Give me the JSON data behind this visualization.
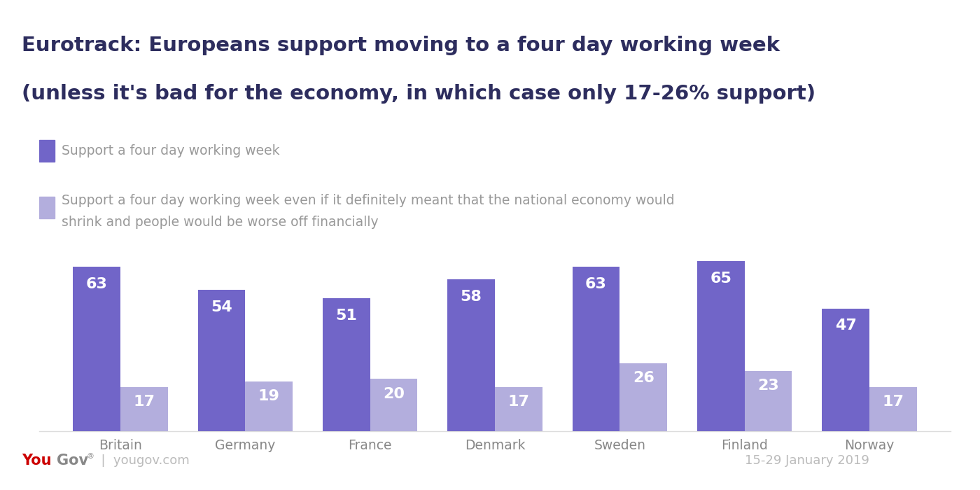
{
  "title_line1": "Eurotrack: Europeans support moving to a four day working week",
  "title_line2": "(unless it's bad for the economy, in which case only 17-26% support)",
  "countries": [
    "Britain",
    "Germany",
    "France",
    "Denmark",
    "Sweden",
    "Finland",
    "Norway"
  ],
  "support_main": [
    63,
    54,
    51,
    58,
    63,
    65,
    47
  ],
  "support_economy": [
    17,
    19,
    20,
    17,
    26,
    23,
    17
  ],
  "color_main": "#7165c8",
  "color_light": "#b3aedd",
  "title_bg": "#eae8f2",
  "legend_label_main": "Support a four day working week",
  "legend_label_economy_1": "Support a four day working week even if it definitely meant that the national economy would",
  "legend_label_economy_2": "shrink and people would be worse off financially",
  "bar_width": 0.38,
  "ylim": [
    0,
    75
  ],
  "date_label": "15-29 January 2019",
  "background": "#ffffff",
  "legend_text_color": "#999999",
  "axis_text_color": "#888888",
  "title_color": "#2d2d5e"
}
